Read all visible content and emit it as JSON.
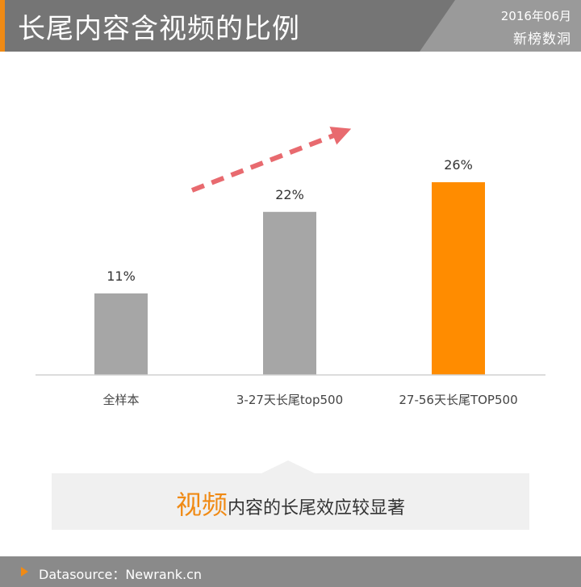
{
  "header": {
    "title": "长尾内容含视频的比例",
    "date": "2016年06月",
    "brand": "新榜数洞"
  },
  "colors": {
    "accent": "#f08a14",
    "bar_gray": "#a6a6a6",
    "bar_highlight": "#ff8c00",
    "trend_arrow": "#e86a6f",
    "header_bg": "#757575"
  },
  "chart_data": {
    "type": "bar",
    "categories": [
      "全样本",
      "3-27天长尾top500",
      "27-56天长尾TOP500"
    ],
    "values": [
      11,
      22,
      26
    ],
    "value_labels": [
      "11%",
      "22%",
      "26%"
    ],
    "highlight_index": 2,
    "ylim": [
      0,
      26
    ],
    "grid": false,
    "legend": "none",
    "annotation": "dashed upward trend arrow"
  },
  "callout": {
    "highlight": "视频",
    "rest": "内容的长尾效应较显著"
  },
  "footer": {
    "icon": "play-triangle-icon",
    "text": "Datasource：Newrank.cn"
  }
}
